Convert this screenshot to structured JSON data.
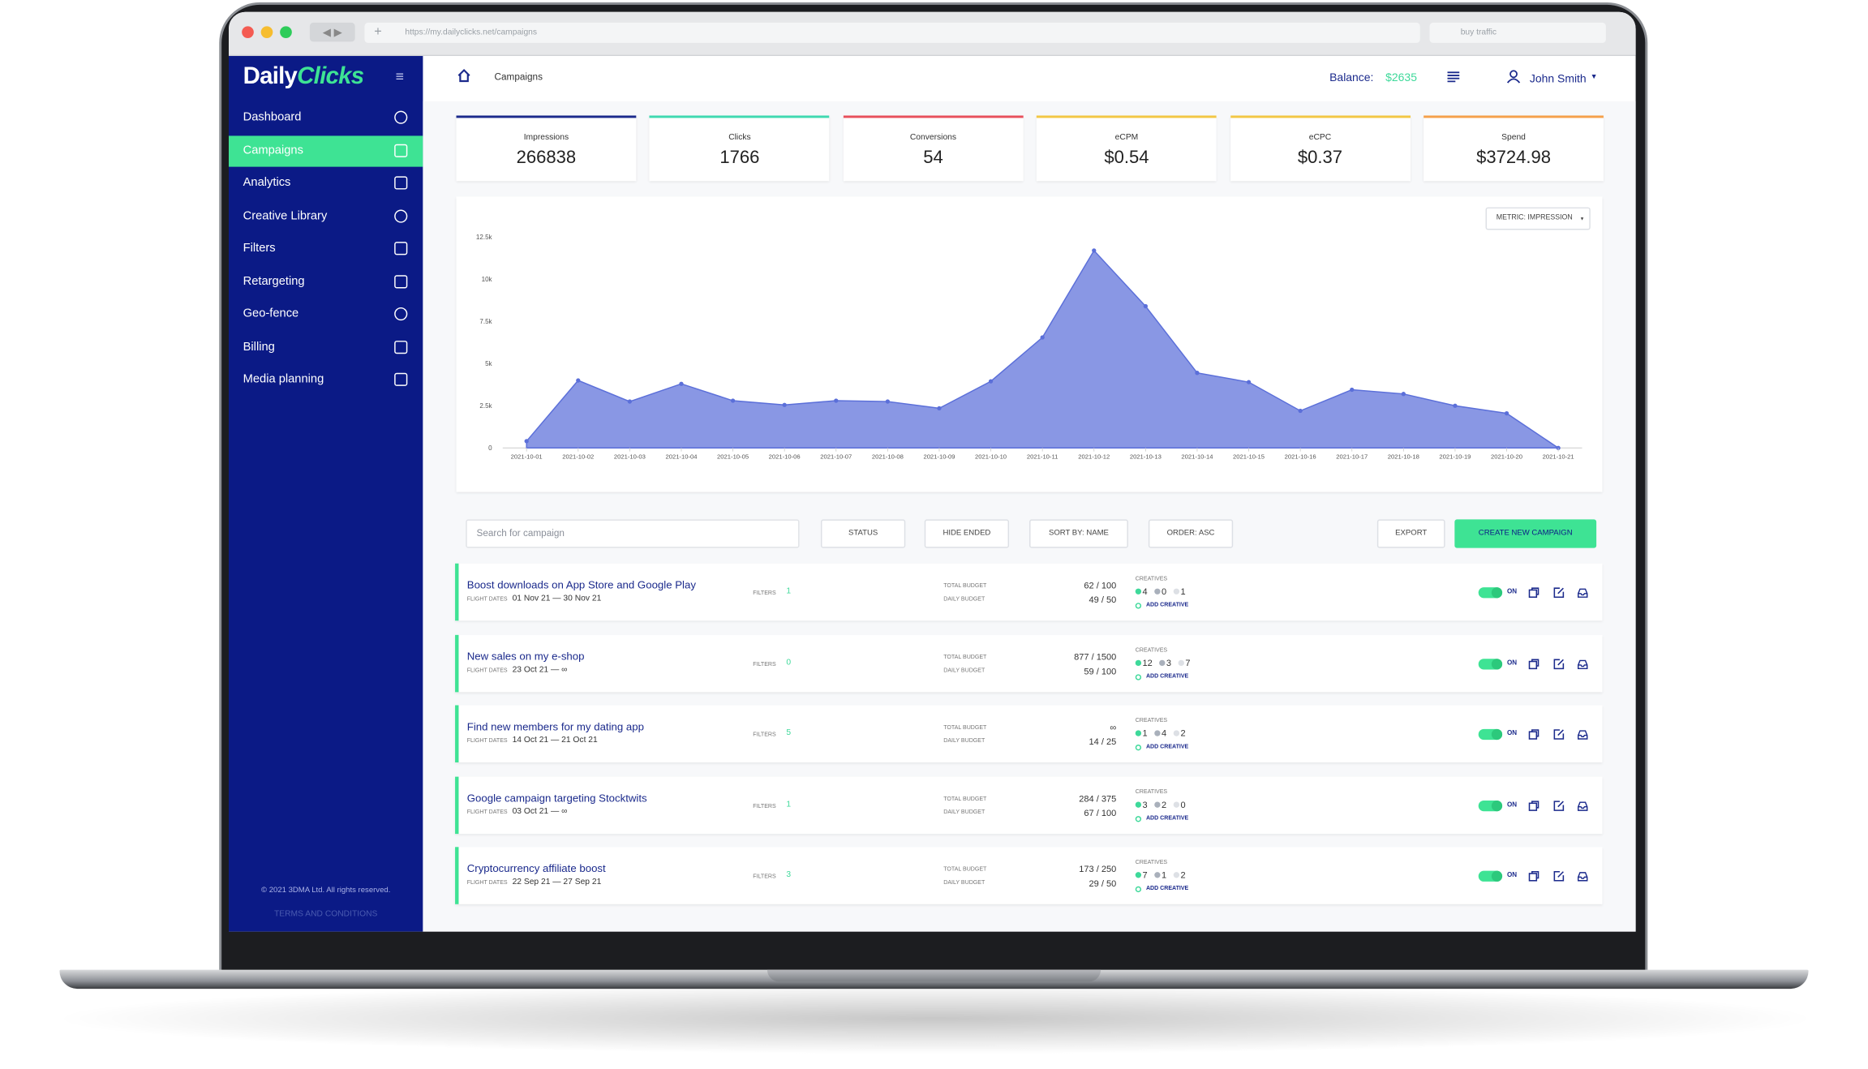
{
  "browser": {
    "url": "https://my.dailyclicks.net/campaigns",
    "search": "buy traffic"
  },
  "sidebar": {
    "logo_a": "Daily",
    "logo_b": "Clicks",
    "nav": [
      "Dashboard",
      "Campaigns",
      "Analytics",
      "Creative Library",
      "Filters",
      "Retargeting",
      "Geo-fence",
      "Billing",
      "Media planning"
    ],
    "active": 1,
    "copyright": "© 2021 3DMA Ltd. All rights reserved.",
    "terms": "TERMS AND CONDITIONS"
  },
  "header": {
    "breadcrumb": "Campaigns",
    "balance_label": "Balance:",
    "balance": "$2635",
    "user": "John Smith"
  },
  "kpis": [
    {
      "label": "Impressions",
      "value": "266838",
      "color": "#1b2a8c"
    },
    {
      "label": "Clicks",
      "value": "1766",
      "color": "#3fd9b0"
    },
    {
      "label": "Conversions",
      "value": "54",
      "color": "#e8505b"
    },
    {
      "label": "eCPM",
      "value": "$0.54",
      "color": "#f2c744"
    },
    {
      "label": "eCPC",
      "value": "$0.37",
      "color": "#f2c744"
    },
    {
      "label": "Spend",
      "value": "$3724.98",
      "color": "#f5a04a"
    }
  ],
  "chart_data": {
    "type": "area",
    "metric_button": "METRIC: IMPRESSION",
    "categories": [
      "2021-10-01",
      "2021-10-02",
      "2021-10-03",
      "2021-10-04",
      "2021-10-05",
      "2021-10-06",
      "2021-10-07",
      "2021-10-08",
      "2021-10-09",
      "2021-10-10",
      "2021-10-11",
      "2021-10-12",
      "2021-10-13",
      "2021-10-14",
      "2021-10-15",
      "2021-10-16",
      "2021-10-17",
      "2021-10-18",
      "2021-10-19",
      "2021-10-20",
      "2021-10-21"
    ],
    "values": [
      400,
      4000,
      2750,
      3800,
      2800,
      2550,
      2800,
      2750,
      2350,
      3950,
      6550,
      11700,
      8400,
      4450,
      3900,
      2200,
      3450,
      3200,
      2500,
      2050,
      0
    ],
    "color": "#5b6fd9",
    "ylim": [
      0,
      12500
    ],
    "yticks": [
      0,
      {
        "value": 2500,
        "label": "2.5k"
      },
      {
        "value": 5000,
        "label": "5k"
      },
      {
        "value": 7500,
        "label": "7.5k"
      },
      {
        "value": 10000,
        "label": "10k"
      },
      {
        "value": 12500,
        "label": "12.5k"
      }
    ],
    "grid": false
  },
  "toolbar": {
    "search": "Search for campaign",
    "status": "STATUS",
    "hide_ended": "HIDE ENDED",
    "sort": "SORT BY: NAME",
    "order": "ORDER: ASC",
    "export": "EXPORT",
    "create": "CREATE NEW CAMPAIGN"
  },
  "labels": {
    "flight_dates": "FLIGHT DATES",
    "filters": "FILTERS",
    "total_budget": "TOTAL BUDGET",
    "daily_budget": "DAILY BUDGET",
    "creatives": "CREATIVES",
    "add_creative": "ADD CREATIVE",
    "on": "ON"
  },
  "campaigns": [
    {
      "name": "Boost downloads on App Store and Google Play",
      "dates": "01 Nov 21 — 30 Nov 21",
      "filters": 1,
      "total": "62 / 100",
      "daily": "49 / 50",
      "creatives": [
        4,
        0,
        1
      ]
    },
    {
      "name": "New sales on my e-shop",
      "dates": "23 Oct 21 — ∞",
      "filters": 0,
      "total": "877 / 1500",
      "daily": "59 / 100",
      "creatives": [
        12,
        3,
        7
      ]
    },
    {
      "name": "Find new members for my dating app",
      "dates": "14 Oct 21 — 21 Oct 21",
      "filters": 5,
      "total": "∞",
      "daily": "14 / 25",
      "creatives": [
        1,
        4,
        2
      ]
    },
    {
      "name": "Google campaign targeting Stocktwits",
      "dates": "03 Oct 21 — ∞",
      "filters": 1,
      "total": "284 / 375",
      "daily": "67 / 100",
      "creatives": [
        3,
        2,
        0
      ]
    },
    {
      "name": "Cryptocurrency affiliate boost",
      "dates": "22 Sep 21 — 27 Sep 21",
      "filters": 3,
      "total": "173 / 250",
      "daily": "29 / 50",
      "creatives": [
        7,
        1,
        2
      ]
    }
  ]
}
